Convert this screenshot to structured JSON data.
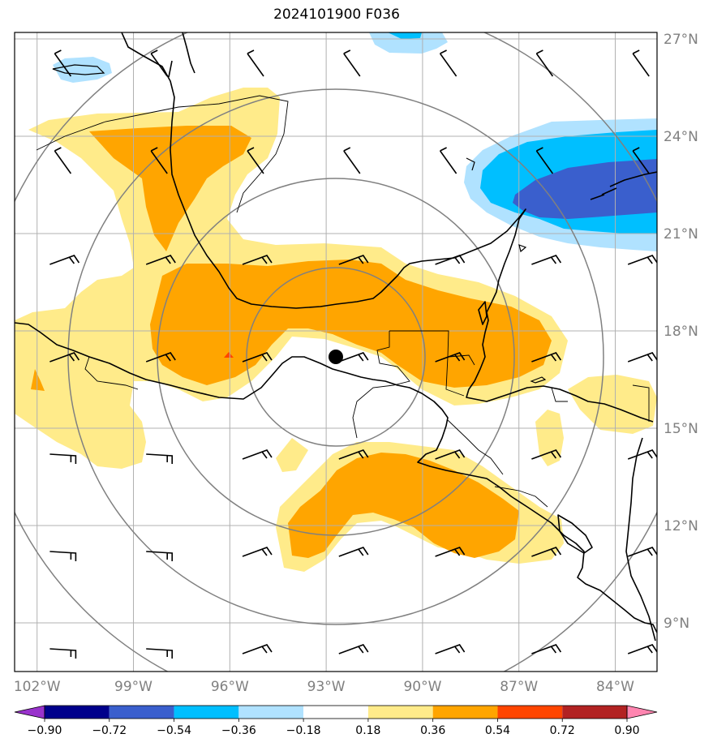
{
  "title": "2024101900 F036",
  "map": {
    "lon_range": [
      -102.7,
      -82.7
    ],
    "lat_range": [
      7.5,
      27.2
    ],
    "lon_ticks": [
      {
        "value": -102,
        "label": "102°W"
      },
      {
        "value": -99,
        "label": "99°W"
      },
      {
        "value": -96,
        "label": "96°W"
      },
      {
        "value": -93,
        "label": "93°W"
      },
      {
        "value": -90,
        "label": "90°W"
      },
      {
        "value": -87,
        "label": "87°W"
      },
      {
        "value": -84,
        "label": "84°W"
      }
    ],
    "lat_ticks": [
      {
        "value": 27,
        "label": "27°N"
      },
      {
        "value": 24,
        "label": "24°N"
      },
      {
        "value": 21,
        "label": "21°N"
      },
      {
        "value": 18,
        "label": "18°N"
      },
      {
        "value": 15,
        "label": "15°N"
      },
      {
        "value": 12,
        "label": "12°N"
      },
      {
        "value": 9,
        "label": "9°N"
      }
    ],
    "storm_center": {
      "lon": -92.7,
      "lat": 17.2
    },
    "range_rings_deg": [
      2.75,
      5.5,
      8.25,
      11.0
    ],
    "grid": true
  },
  "colorbar": {
    "labels": [
      "−0.90",
      "−0.72",
      "−0.54",
      "−0.36",
      "−0.18",
      "0.18",
      "0.36",
      "0.54",
      "0.72",
      "0.90"
    ],
    "colors": [
      "#9932cc",
      "#00008b",
      "#3a5fcd",
      "#00bfff",
      "#b0e2ff",
      "#ffffff",
      "#ffeb8a",
      "#ffa500",
      "#ff4500",
      "#b22222",
      "#ff85b0"
    ]
  },
  "colors": {
    "grid": "#b0b0b0",
    "rings": "#808080",
    "coast": "#000000"
  }
}
